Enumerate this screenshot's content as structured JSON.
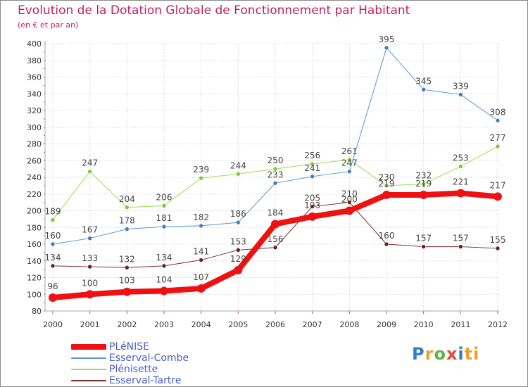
{
  "header": {
    "title": "Evolution de la Dotation Globale de Fonctionnement par Habitant",
    "subtitle": "(en € et par an)"
  },
  "logo": {
    "text": "Proxiti",
    "letters": [
      "P",
      "r",
      "o",
      "x",
      "i",
      "ti"
    ]
  },
  "colors": {
    "title": "#c21f63",
    "grid": "#dddddd",
    "axis": "#aaaaaa",
    "legend_text": "#4a5fc0",
    "label": "#444444"
  },
  "chart_data": {
    "type": "line",
    "title": "Evolution de la Dotation Globale de Fonctionnement par Habitant",
    "subtitle": "(en € et par an)",
    "xlabel": "",
    "ylabel": "",
    "x": [
      "2000",
      "2001",
      "2002",
      "2003",
      "2004",
      "2005",
      "2006",
      "2007",
      "2008",
      "2009",
      "2010",
      "2011",
      "2012"
    ],
    "ylim": [
      80,
      400
    ],
    "yticks": [
      80,
      100,
      120,
      140,
      160,
      180,
      200,
      220,
      240,
      260,
      280,
      300,
      320,
      340,
      360,
      380,
      400
    ],
    "grid": true,
    "legend_position": "bottom-left",
    "series": [
      {
        "name": "PLéNISE",
        "color": "#ee1111",
        "style": "thick",
        "values": [
          96,
          100,
          103,
          104,
          107,
          129,
          184,
          193,
          200,
          219,
          219,
          221,
          217
        ]
      },
      {
        "name": "Esserval-Combe",
        "color": "#5b95cc",
        "marker_color": "#3d7fc2",
        "style": "thin",
        "values": [
          160,
          167,
          178,
          181,
          182,
          186,
          233,
          241,
          247,
          395,
          345,
          339,
          308
        ]
      },
      {
        "name": "Plénisette",
        "color": "#99dd55",
        "marker_color": "#7acc33",
        "style": "thin",
        "values": [
          189,
          247,
          204,
          206,
          239,
          244,
          250,
          256,
          261,
          230,
          232,
          253,
          277
        ]
      },
      {
        "name": "Esserval-Tartre",
        "color": "#7a2a2a",
        "marker_color": "#6a1f1f",
        "style": "thin",
        "values": [
          134,
          133,
          132,
          134,
          141,
          153,
          156,
          205,
          210,
          160,
          157,
          157,
          155
        ]
      }
    ]
  }
}
